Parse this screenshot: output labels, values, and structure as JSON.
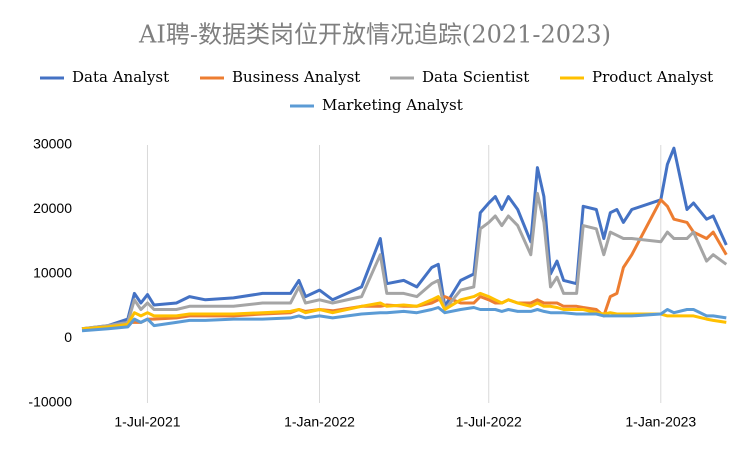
{
  "chart_data": {
    "type": "line",
    "title": "AI聘-数据类岗位开放情况追踪(2021-2023)",
    "x": [
      "2021-04-22",
      "2021-05-20",
      "2021-06-10",
      "2021-06-17",
      "2021-06-24",
      "2021-07-01",
      "2021-07-08",
      "2021-08-01",
      "2021-08-15",
      "2021-09-01",
      "2021-10-01",
      "2021-11-01",
      "2021-12-01",
      "2021-12-10",
      "2021-12-17",
      "2022-01-01",
      "2022-01-15",
      "2022-02-15",
      "2022-03-07",
      "2022-03-14",
      "2022-04-01",
      "2022-04-15",
      "2022-05-01",
      "2022-05-08",
      "2022-05-15",
      "2022-06-01",
      "2022-06-15",
      "2022-06-22",
      "2022-07-01",
      "2022-07-08",
      "2022-07-15",
      "2022-07-22",
      "2022-08-01",
      "2022-08-15",
      "2022-08-22",
      "2022-08-29",
      "2022-09-05",
      "2022-09-12",
      "2022-09-19",
      "2022-10-03",
      "2022-10-10",
      "2022-10-24",
      "2022-11-01",
      "2022-11-08",
      "2022-11-15",
      "2022-11-22",
      "2022-12-01",
      "2023-01-01",
      "2023-01-08",
      "2023-01-15",
      "2023-01-29",
      "2023-02-05",
      "2023-02-19",
      "2023-02-26",
      "2023-03-12"
    ],
    "series": [
      {
        "name": "Data Analyst",
        "color": "#4472c4",
        "values": [
          1500,
          2000,
          3000,
          7000,
          5500,
          6800,
          5200,
          5500,
          6500,
          6000,
          6300,
          7000,
          7000,
          9000,
          6500,
          7500,
          6000,
          8000,
          15500,
          8500,
          9000,
          8000,
          11000,
          11500,
          5000,
          9000,
          10000,
          19500,
          21000,
          22000,
          20000,
          22000,
          20000,
          15000,
          26500,
          22000,
          10000,
          12000,
          9000,
          8500,
          20500,
          20000,
          15500,
          19500,
          20000,
          18000,
          20000,
          21500,
          27000,
          29500,
          20000,
          21000,
          18500,
          19000,
          14500
        ]
      },
      {
        "name": "Business Analyst",
        "color": "#ed7d31",
        "values": [
          1500,
          1800,
          2500,
          2500,
          2500,
          3000,
          3000,
          3200,
          3500,
          3500,
          3500,
          3800,
          4000,
          4500,
          4200,
          4500,
          4300,
          5000,
          5000,
          5200,
          5000,
          5000,
          5500,
          6000,
          6500,
          5500,
          5500,
          6500,
          6000,
          5500,
          5500,
          6000,
          5500,
          5500,
          6000,
          5500,
          5500,
          5500,
          5000,
          5000,
          4800,
          4500,
          3500,
          6500,
          7000,
          11000,
          13000,
          21500,
          20500,
          18500,
          18000,
          16500,
          15500,
          16500,
          13000
        ]
      },
      {
        "name": "Data Scientist",
        "color": "#a5a5a5",
        "values": [
          1500,
          2000,
          2500,
          6000,
          4500,
          5500,
          4500,
          4500,
          5000,
          5000,
          5000,
          5500,
          5500,
          8000,
          5500,
          6000,
          5500,
          6500,
          13000,
          7000,
          7000,
          6500,
          8500,
          9000,
          4500,
          7500,
          8000,
          17000,
          18000,
          19000,
          17500,
          19000,
          17500,
          13000,
          22500,
          18000,
          8000,
          9500,
          7000,
          7000,
          17500,
          17000,
          13000,
          16500,
          16000,
          15500,
          15500,
          15000,
          16500,
          15500,
          15500,
          16500,
          12000,
          13000,
          11500
        ]
      },
      {
        "name": "Product Analyst",
        "color": "#ffc000",
        "values": [
          1500,
          1800,
          2200,
          4000,
          3500,
          4000,
          3500,
          3500,
          3800,
          3800,
          3800,
          4000,
          4200,
          4500,
          4000,
          4500,
          4000,
          5000,
          5500,
          5000,
          5200,
          5000,
          6000,
          6500,
          4500,
          6000,
          6500,
          7000,
          6500,
          6000,
          5500,
          6000,
          5500,
          5000,
          5500,
          5000,
          5000,
          4800,
          4500,
          4500,
          4500,
          4000,
          3800,
          4000,
          3800,
          3800,
          3800,
          3800,
          3500,
          3500,
          3500,
          3500,
          3000,
          2800,
          2500
        ]
      },
      {
        "name": "Marketing Analyst",
        "color": "#5b9bd5",
        "values": [
          1200,
          1500,
          1800,
          3000,
          2500,
          3000,
          2000,
          2500,
          2800,
          2800,
          3000,
          3000,
          3200,
          3500,
          3200,
          3500,
          3200,
          3800,
          4000,
          4000,
          4200,
          4000,
          4500,
          4800,
          4000,
          4500,
          4800,
          4500,
          4500,
          4500,
          4200,
          4500,
          4200,
          4200,
          4500,
          4200,
          4000,
          4000,
          4000,
          3800,
          3800,
          3800,
          3500,
          3500,
          3500,
          3500,
          3500,
          3800,
          4500,
          4000,
          4500,
          4500,
          3500,
          3500,
          3200
        ]
      }
    ],
    "xlim": [
      "2021-04-22",
      "2023-03-16"
    ],
    "xticks": [
      {
        "value": "2021-07-01",
        "label": "1-Jul-2021"
      },
      {
        "value": "2022-01-01",
        "label": "1-Jan-2022"
      },
      {
        "value": "2022-07-01",
        "label": "1-Jul-2022"
      },
      {
        "value": "2023-01-01",
        "label": "1-Jan-2023"
      }
    ],
    "ylim": [
      -10000,
      30000
    ],
    "yticks": [
      -10000,
      0,
      10000,
      20000,
      30000
    ],
    "grid": "x",
    "legend": "top"
  }
}
